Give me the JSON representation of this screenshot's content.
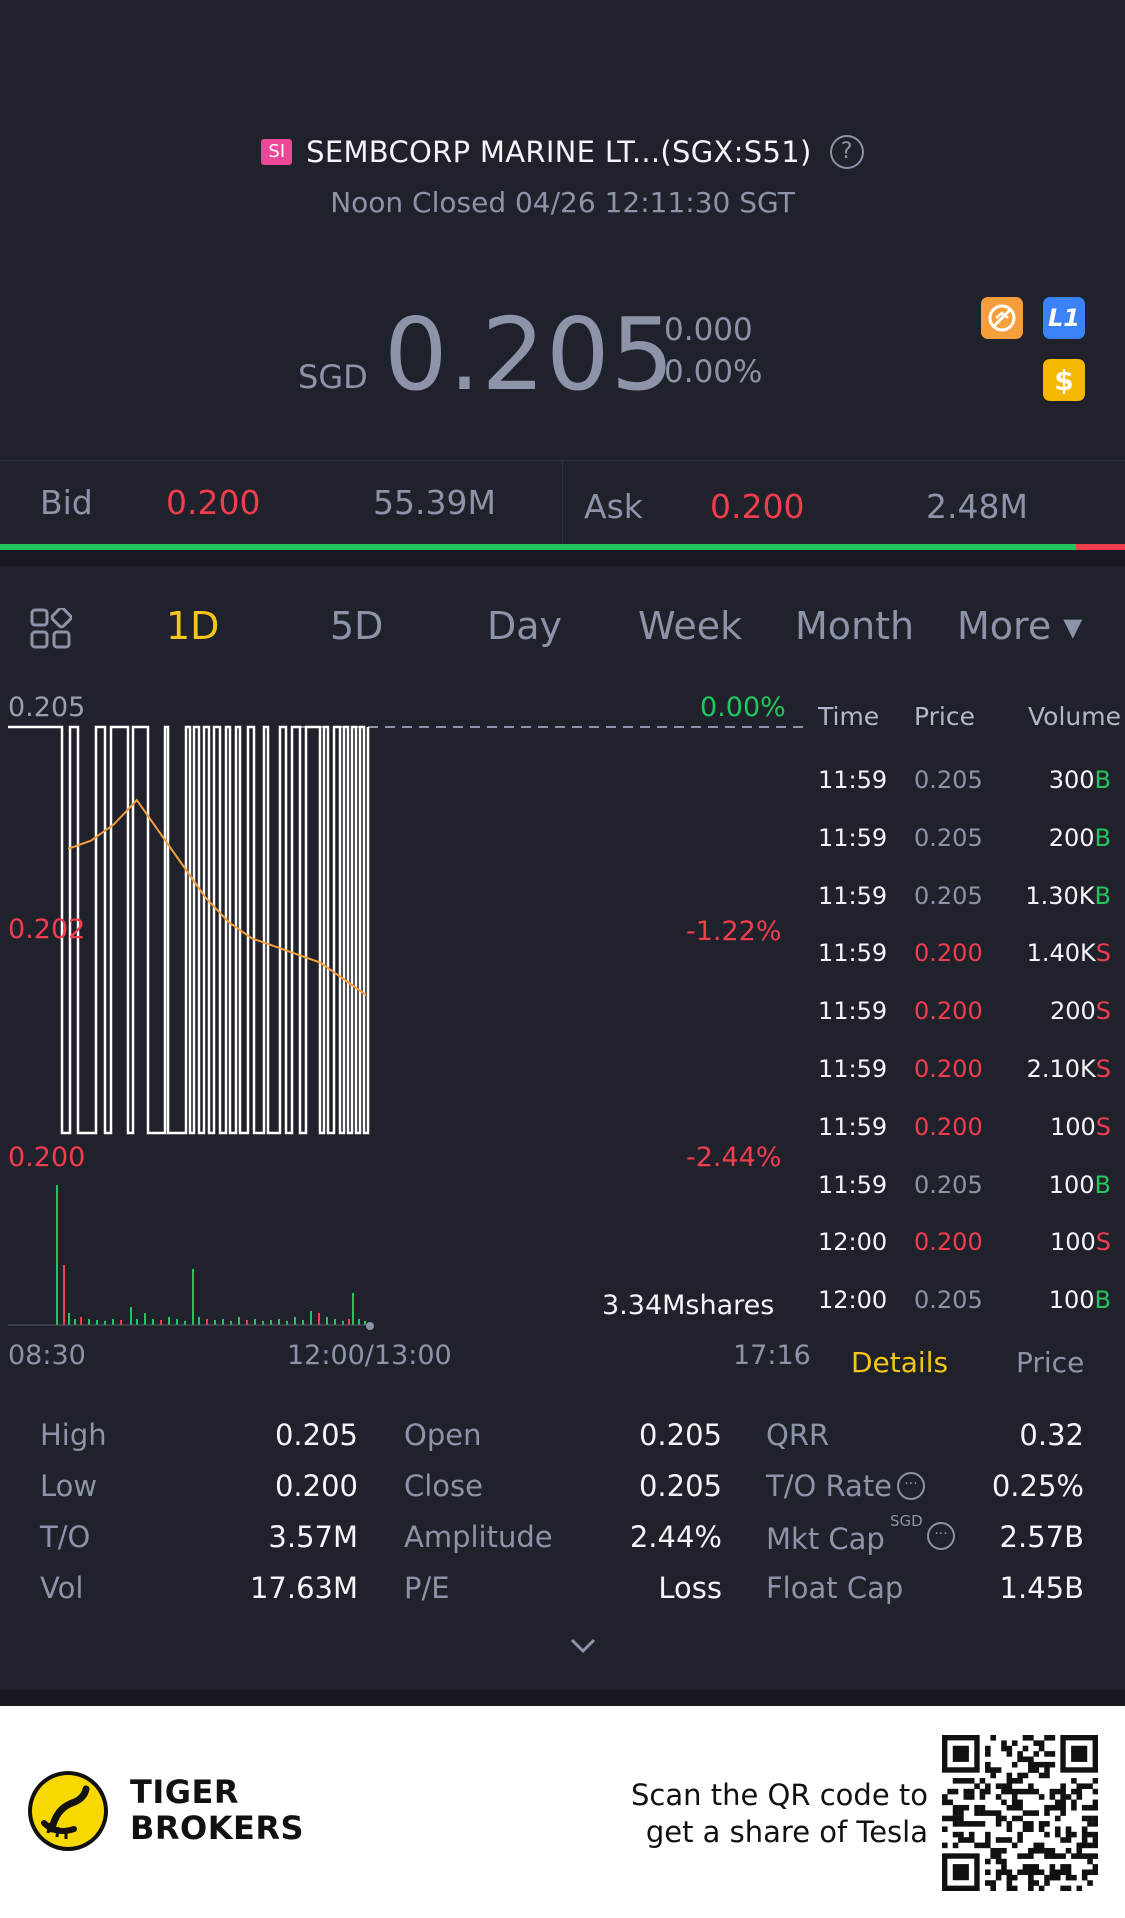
{
  "header": {
    "badge": "SI",
    "title": "SEMBCORP MARINE LT...(SGX:S51)",
    "status": "Noon Closed 04/26 12:11:30 SGT"
  },
  "quote": {
    "currency": "SGD",
    "price": "0.205",
    "change_abs": "0.000",
    "change_pct": "0.00%"
  },
  "icons": [
    "no-trade-icon",
    "level1-icon",
    "dollar-icon"
  ],
  "icon_l1_text": "L1",
  "icon_dollar_text": "$",
  "bidask": {
    "bid_label": "Bid",
    "bid_price": "0.200",
    "bid_size": "55.39M",
    "ask_label": "Ask",
    "ask_price": "0.200",
    "ask_size": "2.48M",
    "bid_share": 0.956
  },
  "tabs": {
    "items": [
      "1D",
      "5D",
      "Day",
      "Week",
      "Month",
      "More ▾"
    ],
    "active": "1D"
  },
  "chart_data": {
    "type": "line",
    "title": "",
    "y_labels": {
      "top": "0.205",
      "mid": "0.202",
      "bottom": "0.200"
    },
    "pct_labels": {
      "top": "0.00%",
      "mid": "-1.22%",
      "bottom": "-2.44%"
    },
    "x_labels": {
      "start": "08:30",
      "mid": "12:00/13:00",
      "end": "17:16"
    },
    "volume_label": "3.34Mshares",
    "ylim": [
      0.2,
      0.205
    ],
    "price_series_pattern": "alternating between 0.205 and 0.200 from 08:30 to ~12:00",
    "avg_series": [
      0.2035,
      0.2036,
      0.2038,
      0.2041,
      0.2037,
      0.2033,
      0.2029,
      0.2026,
      0.2024,
      0.2023,
      0.2022,
      0.2021,
      0.2019,
      0.2017
    ],
    "colors": {
      "price": "#ffffff",
      "average": "#f59e3b",
      "up": "#22c55e",
      "down": "#f23d4f"
    }
  },
  "ticks": {
    "headers": [
      "Time",
      "Price",
      "Volume"
    ],
    "rows": [
      {
        "time": "11:59",
        "price": "0.205",
        "vol": "300",
        "side": "B"
      },
      {
        "time": "11:59",
        "price": "0.205",
        "vol": "200",
        "side": "B"
      },
      {
        "time": "11:59",
        "price": "0.205",
        "vol": "1.30K",
        "side": "B"
      },
      {
        "time": "11:59",
        "price": "0.200",
        "vol": "1.40K",
        "side": "S"
      },
      {
        "time": "11:59",
        "price": "0.200",
        "vol": "200",
        "side": "S"
      },
      {
        "time": "11:59",
        "price": "0.200",
        "vol": "2.10K",
        "side": "S"
      },
      {
        "time": "11:59",
        "price": "0.200",
        "vol": "100",
        "side": "S"
      },
      {
        "time": "11:59",
        "price": "0.205",
        "vol": "100",
        "side": "B"
      },
      {
        "time": "12:00",
        "price": "0.200",
        "vol": "100",
        "side": "S"
      },
      {
        "time": "12:00",
        "price": "0.205",
        "vol": "100",
        "side": "B"
      }
    ],
    "tab_details": "Details",
    "tab_price": "Price"
  },
  "stats": {
    "col1": [
      {
        "label": "High",
        "value": "0.205"
      },
      {
        "label": "Low",
        "value": "0.200"
      },
      {
        "label": "T/O",
        "value": "3.57M"
      },
      {
        "label": "Vol",
        "value": "17.63M"
      }
    ],
    "col2": [
      {
        "label": "Open",
        "value": "0.205"
      },
      {
        "label": "Close",
        "value": "0.205"
      },
      {
        "label": "Amplitude",
        "value": "2.44%"
      },
      {
        "label": "P/E",
        "value": "Loss"
      }
    ],
    "col3": [
      {
        "label": "QRR",
        "value": "0.32"
      },
      {
        "label": "T/O Rate",
        "value": "0.25%"
      },
      {
        "label": "Mkt Cap",
        "value": "2.57B",
        "sup": "SGD"
      },
      {
        "label": "Float Cap",
        "value": "1.45B"
      }
    ]
  },
  "footer": {
    "brand_line1": "TIGER",
    "brand_line2": "BROKERS",
    "promo_line1": "Scan the QR code to",
    "promo_line2": "get a share of Tesla"
  }
}
